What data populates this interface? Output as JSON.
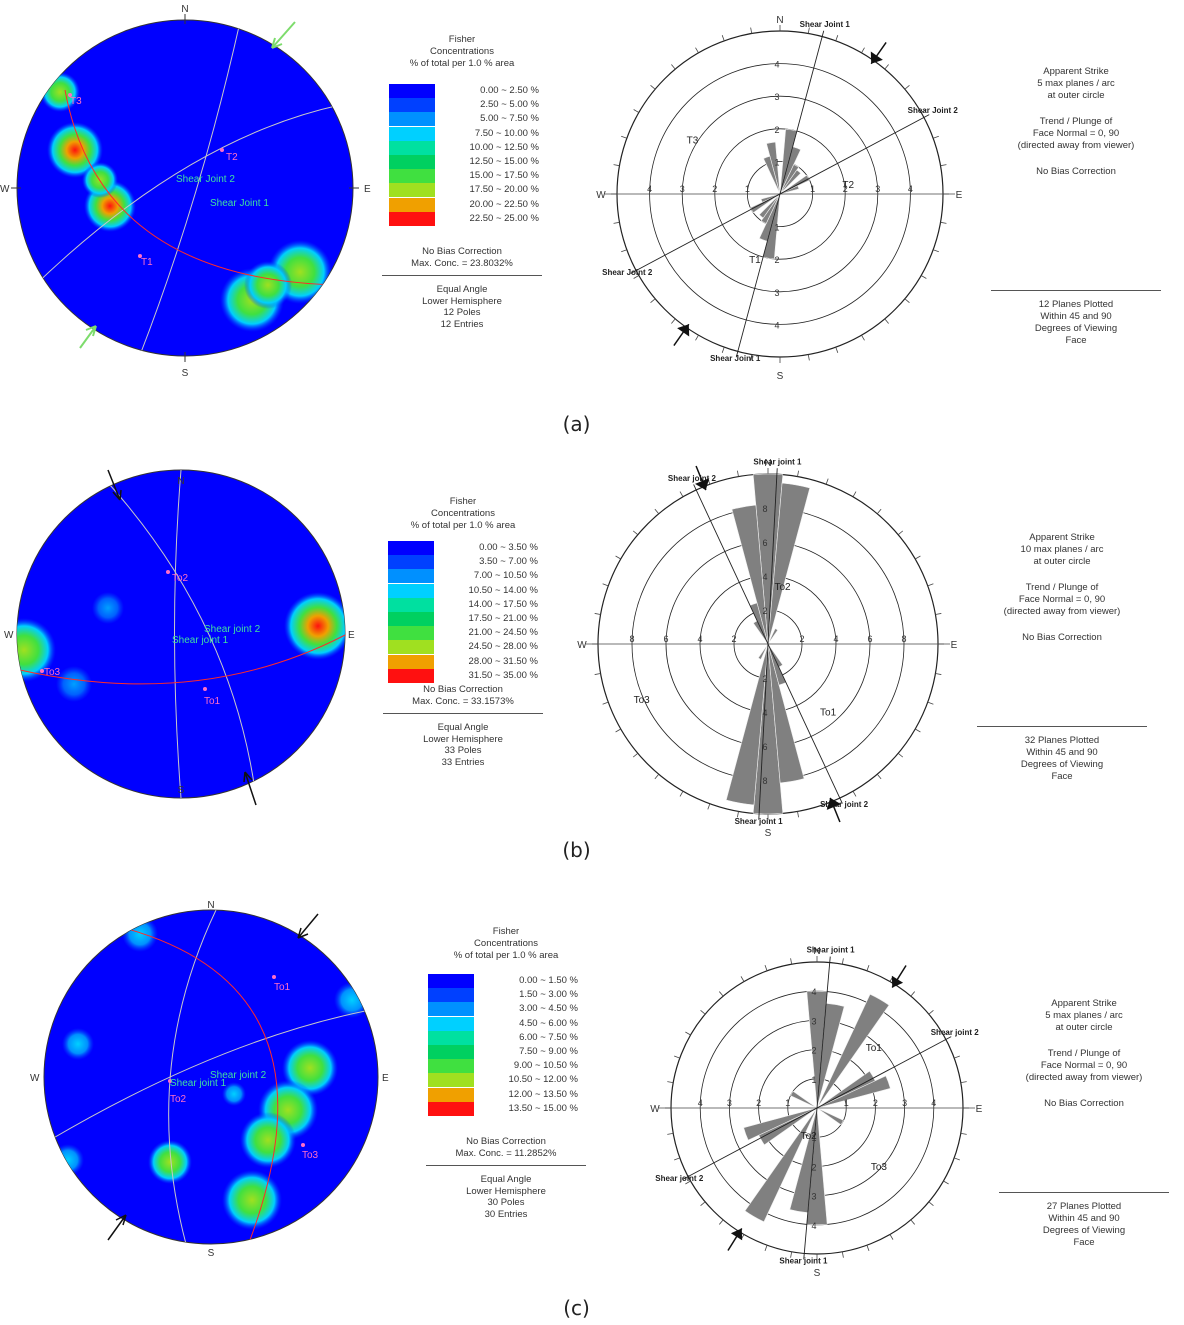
{
  "captions": [
    "(a)",
    "(b)",
    "(c)"
  ],
  "panels": [
    {
      "stereonet": {
        "compass": [
          "N",
          "E",
          "S",
          "W"
        ],
        "pole_labels": [
          "T3",
          "T2",
          "T1"
        ],
        "plane_labels": [
          "Shear Joint 2",
          "Shear Joint 1"
        ]
      },
      "legend": {
        "title": [
          "Fisher",
          "Concentrations",
          "% of total per 1.0 % area"
        ],
        "ranges": [
          "0.00 ~  2.50 %",
          "2.50 ~  5.00 %",
          "5.00 ~  7.50 %",
          "7.50 ~ 10.00 %",
          "10.00 ~ 12.50 %",
          "12.50 ~ 15.00 %",
          "15.00 ~ 17.50 %",
          "17.50 ~ 20.00 %",
          "20.00 ~ 22.50 %",
          "22.50 ~ 25.00 %"
        ],
        "colors": [
          "#0000ff",
          "#0040ff",
          "#0090ff",
          "#00d0ff",
          "#00e0a0",
          "#00d060",
          "#40e040",
          "#a0e020",
          "#f0a000",
          "#ff1010"
        ],
        "no_bias": "No Bias Correction",
        "max_conc": "Max. Conc. = 23.8032%",
        "footer": [
          "Equal Angle",
          "Lower Hemisphere",
          "12 Poles",
          "12 Entries"
        ]
      },
      "rose": {
        "compass": [
          "N",
          "E",
          "S",
          "W"
        ],
        "ring_labels": [
          "1",
          "2",
          "3",
          "4"
        ],
        "set_labels": [
          "T3",
          "T2",
          "T1"
        ],
        "joint_labels": [
          "Shear Joint 1",
          "Shear Joint 2",
          "Shear Joint 2",
          "Shear Joint 1"
        ]
      },
      "info": {
        "apparent": [
          "Apparent Strike",
          "5 max planes / arc",
          "at outer circle"
        ],
        "trend": [
          "Trend / Plunge of",
          "Face Normal =   0, 90",
          "(directed away from viewer)"
        ],
        "no_bias": "No Bias Correction",
        "footer": [
          "12 Planes Plotted",
          "Within 45 and 90",
          "Degrees of Viewing",
          "Face"
        ]
      },
      "chart_data": {
        "type": "rose",
        "sectors_deg": [
          10,
          20,
          30,
          40,
          60,
          70,
          190,
          200,
          210,
          220,
          240,
          250,
          350,
          340
        ],
        "values": [
          2.0,
          1.5,
          1.0,
          0.9,
          1.0,
          0.6,
          2.0,
          1.5,
          1.0,
          0.9,
          1.0,
          0.6,
          1.6,
          1.2
        ],
        "rlim": [
          0,
          5
        ]
      }
    },
    {
      "stereonet": {
        "compass": [
          "N",
          "E",
          "S",
          "W"
        ],
        "pole_labels": [
          "To2",
          "To3",
          "To1"
        ],
        "plane_labels": [
          "Shear joint 2",
          "Shear joint 1"
        ]
      },
      "legend": {
        "title": [
          "Fisher",
          "Concentrations",
          "% of total per 1.0 % area"
        ],
        "ranges": [
          "0.00 ~  3.50 %",
          "3.50 ~  7.00 %",
          "7.00 ~ 10.50 %",
          "10.50 ~ 14.00 %",
          "14.00 ~ 17.50 %",
          "17.50 ~ 21.00 %",
          "21.00 ~ 24.50 %",
          "24.50 ~ 28.00 %",
          "28.00 ~ 31.50 %",
          "31.50 ~ 35.00 %"
        ],
        "colors": [
          "#0000ff",
          "#0040ff",
          "#0090ff",
          "#00d0ff",
          "#00e0a0",
          "#00d060",
          "#40e040",
          "#a0e020",
          "#f0a000",
          "#ff1010"
        ],
        "no_bias": "No Bias Correction",
        "max_conc": "Max. Conc. = 33.1573%",
        "footer": [
          "Equal Angle",
          "Lower Hemisphere",
          "33 Poles",
          "33 Entries"
        ]
      },
      "rose": {
        "compass": [
          "N",
          "E",
          "S",
          "W"
        ],
        "ring_labels": [
          "2",
          "4",
          "6",
          "8"
        ],
        "set_labels": [
          "To2",
          "To3",
          "To1"
        ],
        "joint_labels": [
          "Shear joint 1",
          "Shear joint 2",
          "Shear joint 2",
          "Shear joint 1"
        ]
      },
      "info": {
        "apparent": [
          "Apparent Strike",
          "10 max planes / arc",
          "at outer circle"
        ],
        "trend": [
          "Trend / Plunge of",
          "Face Normal =   0, 90",
          "(directed away from viewer)"
        ],
        "no_bias": "No Bias Correction",
        "footer": [
          "32 Planes Plotted",
          "Within 45 and 90",
          "Degrees of Viewing",
          "Face"
        ]
      },
      "chart_data": {
        "type": "rose",
        "sectors_deg": [
          0,
          10,
          350,
          340,
          180,
          190,
          170,
          160,
          30,
          150,
          210,
          330
        ],
        "values": [
          10.0,
          9.5,
          8.2,
          2.5,
          10.0,
          9.5,
          8.2,
          2.5,
          1.0,
          1.5,
          1.0,
          1.5
        ],
        "rlim": [
          0,
          10
        ]
      }
    },
    {
      "stereonet": {
        "compass": [
          "N",
          "E",
          "S",
          "W"
        ],
        "pole_labels": [
          "To1",
          "To2",
          "To3"
        ],
        "plane_labels": [
          "Shear joint 2",
          "Shear joint 1"
        ]
      },
      "legend": {
        "title": [
          "Fisher",
          "Concentrations",
          "% of total per 1.0 % area"
        ],
        "ranges": [
          "0.00 ~  1.50 %",
          "1.50 ~  3.00 %",
          "3.00 ~  4.50 %",
          "4.50 ~  6.00 %",
          "6.00 ~  7.50 %",
          "7.50 ~  9.00 %",
          "9.00 ~ 10.50 %",
          "10.50 ~ 12.00 %",
          "12.00 ~ 13.50 %",
          "13.50 ~ 15.00 %"
        ],
        "colors": [
          "#0000ff",
          "#0040ff",
          "#0090ff",
          "#00d0ff",
          "#00e0a0",
          "#00d060",
          "#40e040",
          "#a0e020",
          "#f0a000",
          "#ff1010"
        ],
        "no_bias": "No Bias Correction",
        "max_conc": "Max. Conc. = 11.2852%",
        "footer": [
          "Equal Angle",
          "Lower Hemisphere",
          "30 Poles",
          "30 Entries"
        ]
      },
      "rose": {
        "compass": [
          "N",
          "E",
          "S",
          "W"
        ],
        "ring_labels": [
          "1",
          "2",
          "3",
          "4"
        ],
        "set_labels": [
          "To1",
          "To2",
          "To3"
        ],
        "joint_labels": [
          "Shear joint 1",
          "Shear joint 2",
          "Shear joint 2",
          "Shear joint 1"
        ]
      },
      "info": {
        "apparent": [
          "Apparent Strike",
          "5 max planes / arc",
          "at outer circle"
        ],
        "trend": [
          "Trend / Plunge of",
          "Face Normal =   0, 90",
          "(directed away from viewer)"
        ],
        "no_bias": "No Bias Correction",
        "footer": [
          "27 Planes Plotted",
          "Within 45 and 90",
          "Degrees of Viewing",
          "Face"
        ]
      },
      "chart_data": {
        "type": "rose",
        "sectors_deg": [
          0,
          10,
          30,
          60,
          70,
          180,
          190,
          210,
          240,
          250,
          120,
          300
        ],
        "values": [
          4.0,
          3.6,
          4.3,
          2.2,
          2.6,
          4.0,
          3.6,
          4.3,
          2.2,
          2.6,
          1.0,
          1.0
        ],
        "rlim": [
          0,
          5
        ]
      }
    }
  ]
}
